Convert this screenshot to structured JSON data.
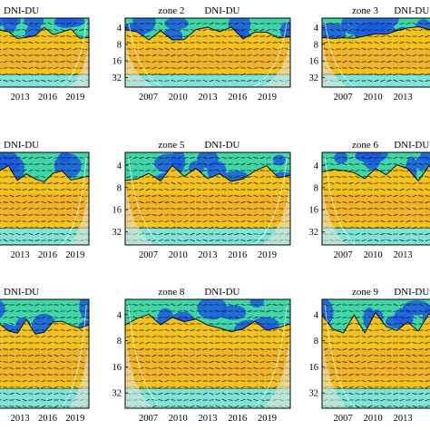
{
  "chart_data": [
    {
      "type": "heatmap",
      "zone_label": "",
      "pair_label": "DNI-DU",
      "x_ticks": [
        "2013",
        "2016",
        "2019"
      ],
      "y_ticks": []
    },
    {
      "type": "heatmap",
      "zone_label": "zone 2",
      "pair_label": "DNI-DU",
      "x_ticks": [
        "2007",
        "2010",
        "2013",
        "2016",
        "2019"
      ],
      "y_ticks": [
        "4",
        "8",
        "16",
        "32"
      ]
    },
    {
      "type": "heatmap",
      "zone_label": "zone 3",
      "pair_label": "DNI-DU",
      "x_ticks": [
        "2007",
        "2010",
        "2013"
      ],
      "y_ticks": [
        "4",
        "8",
        "16",
        "32"
      ]
    },
    {
      "type": "heatmap",
      "zone_label": "",
      "pair_label": "DNI-DU",
      "x_ticks": [
        "2013",
        "2016",
        "2019"
      ],
      "y_ticks": []
    },
    {
      "type": "heatmap",
      "zone_label": "zone 5",
      "pair_label": "DNI-DU",
      "x_ticks": [
        "2007",
        "2010",
        "2013",
        "2016",
        "2019"
      ],
      "y_ticks": [
        "4",
        "8",
        "16",
        "32"
      ]
    },
    {
      "type": "heatmap",
      "zone_label": "zone 6",
      "pair_label": "DNI-DU",
      "x_ticks": [
        "2007",
        "2010",
        "2013"
      ],
      "y_ticks": [
        "4",
        "8",
        "16",
        "32"
      ]
    },
    {
      "type": "heatmap",
      "zone_label": "",
      "pair_label": "DNI-DU",
      "x_ticks": [
        "2013",
        "2016",
        "2019"
      ],
      "y_ticks": []
    },
    {
      "type": "heatmap",
      "zone_label": "zone 8",
      "pair_label": "DNI-DU",
      "x_ticks": [
        "2007",
        "2010",
        "2013",
        "2016",
        "2019"
      ],
      "y_ticks": [
        "4",
        "8",
        "16",
        "32"
      ]
    },
    {
      "type": "heatmap",
      "zone_label": "zone 9",
      "pair_label": "DNI-DU",
      "x_ticks": [
        "2007",
        "2010",
        "2013"
      ],
      "y_ticks": [
        "4",
        "8",
        "16",
        "32"
      ]
    }
  ],
  "colors": {
    "high_power": "#f3c21c",
    "mid_power": "#40d7a8",
    "low_power": "#1b5be0",
    "cone_of_influence": "#e8e8d8",
    "arrows": "#111111"
  }
}
